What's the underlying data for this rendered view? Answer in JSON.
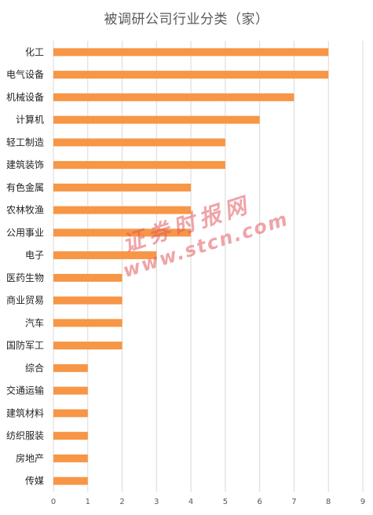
{
  "chart_data": {
    "type": "bar",
    "orientation": "horizontal",
    "title": "被调研公司行业分类（家）",
    "xlabel": "",
    "ylabel": "",
    "categories": [
      "化工",
      "电气设备",
      "机械设备",
      "计算机",
      "轻工制造",
      "建筑装饰",
      "有色金属",
      "农林牧渔",
      "公用事业",
      "电子",
      "医药生物",
      "商业贸易",
      "汽车",
      "国防军工",
      "综合",
      "交通运输",
      "建筑材料",
      "纺织服装",
      "房地产",
      "传媒"
    ],
    "values": [
      8,
      8,
      7,
      6,
      5,
      5,
      4,
      4,
      4,
      3,
      2,
      2,
      2,
      2,
      1,
      1,
      1,
      1,
      1,
      1
    ],
    "xlim": [
      0,
      9
    ],
    "xticks": [
      "0",
      "1",
      "2",
      "3",
      "4",
      "5",
      "6",
      "7",
      "8",
      "9"
    ],
    "grid": true,
    "bar_color": "#F79646",
    "grid_color": "#D9D9D9"
  },
  "watermark": {
    "line1": "证券时报网",
    "line2": "www.stcn.com",
    "color": "#E15A5F"
  }
}
